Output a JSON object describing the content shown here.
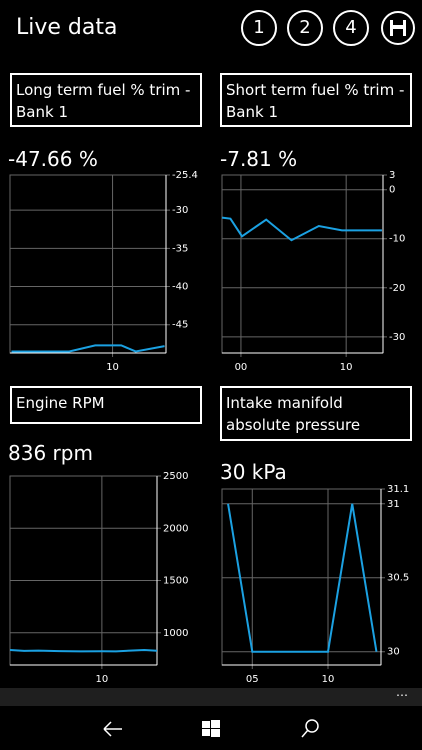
{
  "app": {
    "title": "Live data",
    "buttons": [
      "1",
      "2",
      "4"
    ]
  },
  "panels": [
    {
      "label": "Long term fuel % trim - Bank 1",
      "reading": "-47.66 %"
    },
    {
      "label": "Short term fuel % trim - Bank 1",
      "reading": "-7.81 %"
    },
    {
      "label": "Engine RPM",
      "reading": "836 rpm"
    },
    {
      "label": "Intake manifold absolute pressure",
      "reading": "30 kPa"
    }
  ],
  "chart_data": [
    {
      "type": "line",
      "color": "#1ba1e2",
      "x": [
        3,
        7,
        8.8,
        10.6,
        11.6,
        13.6
      ],
      "values": [
        -48.5,
        -48.5,
        -47.7,
        -47.7,
        -48.5,
        -47.8
      ],
      "xlim": [
        2.9,
        13.7
      ],
      "xticks": [
        10
      ],
      "ylim": [
        -48.7,
        -25.4
      ],
      "yticks": [
        -25.4,
        -30,
        -35,
        -40,
        -45
      ]
    },
    {
      "type": "line",
      "color": "#1ba1e2",
      "x": [
        -1.8,
        -1,
        0.1,
        2.4,
        4.8,
        7.4,
        9.6,
        13.4
      ],
      "values": [
        -5.7,
        -5.9,
        -9.5,
        -6.1,
        -10.3,
        -7.4,
        -8.3,
        -8.3
      ],
      "xlim": [
        -1.8,
        13.5
      ],
      "xticks": [
        {
          "value": 0,
          "label": "00"
        },
        10
      ],
      "ylim": [
        -33.3,
        3
      ],
      "yticks": [
        3,
        0,
        -10,
        -20,
        -30
      ]
    },
    {
      "type": "line",
      "color": "#1ba1e2",
      "x": [
        3.5,
        4.5,
        5.5,
        7,
        8.5,
        10,
        11,
        12,
        13,
        13.9
      ],
      "values": [
        836,
        827,
        830,
        825,
        822,
        823,
        822,
        830,
        836,
        828
      ],
      "xlim": [
        3.5,
        13.9
      ],
      "xticks": [
        10
      ],
      "ylim": [
        692,
        2500
      ],
      "yticks": [
        2500,
        2000,
        1500,
        1000
      ]
    },
    {
      "type": "line",
      "color": "#1ba1e2",
      "x": [
        3.4,
        5,
        10,
        11.6,
        13.2
      ],
      "values": [
        31,
        30,
        30,
        31,
        30
      ],
      "xlim": [
        3,
        13.5
      ],
      "xticks": [
        {
          "value": 5,
          "label": "05"
        },
        10
      ],
      "ylim": [
        29.91,
        31.1
      ],
      "yticks": [
        31.1,
        31,
        30.5,
        30
      ]
    }
  ]
}
